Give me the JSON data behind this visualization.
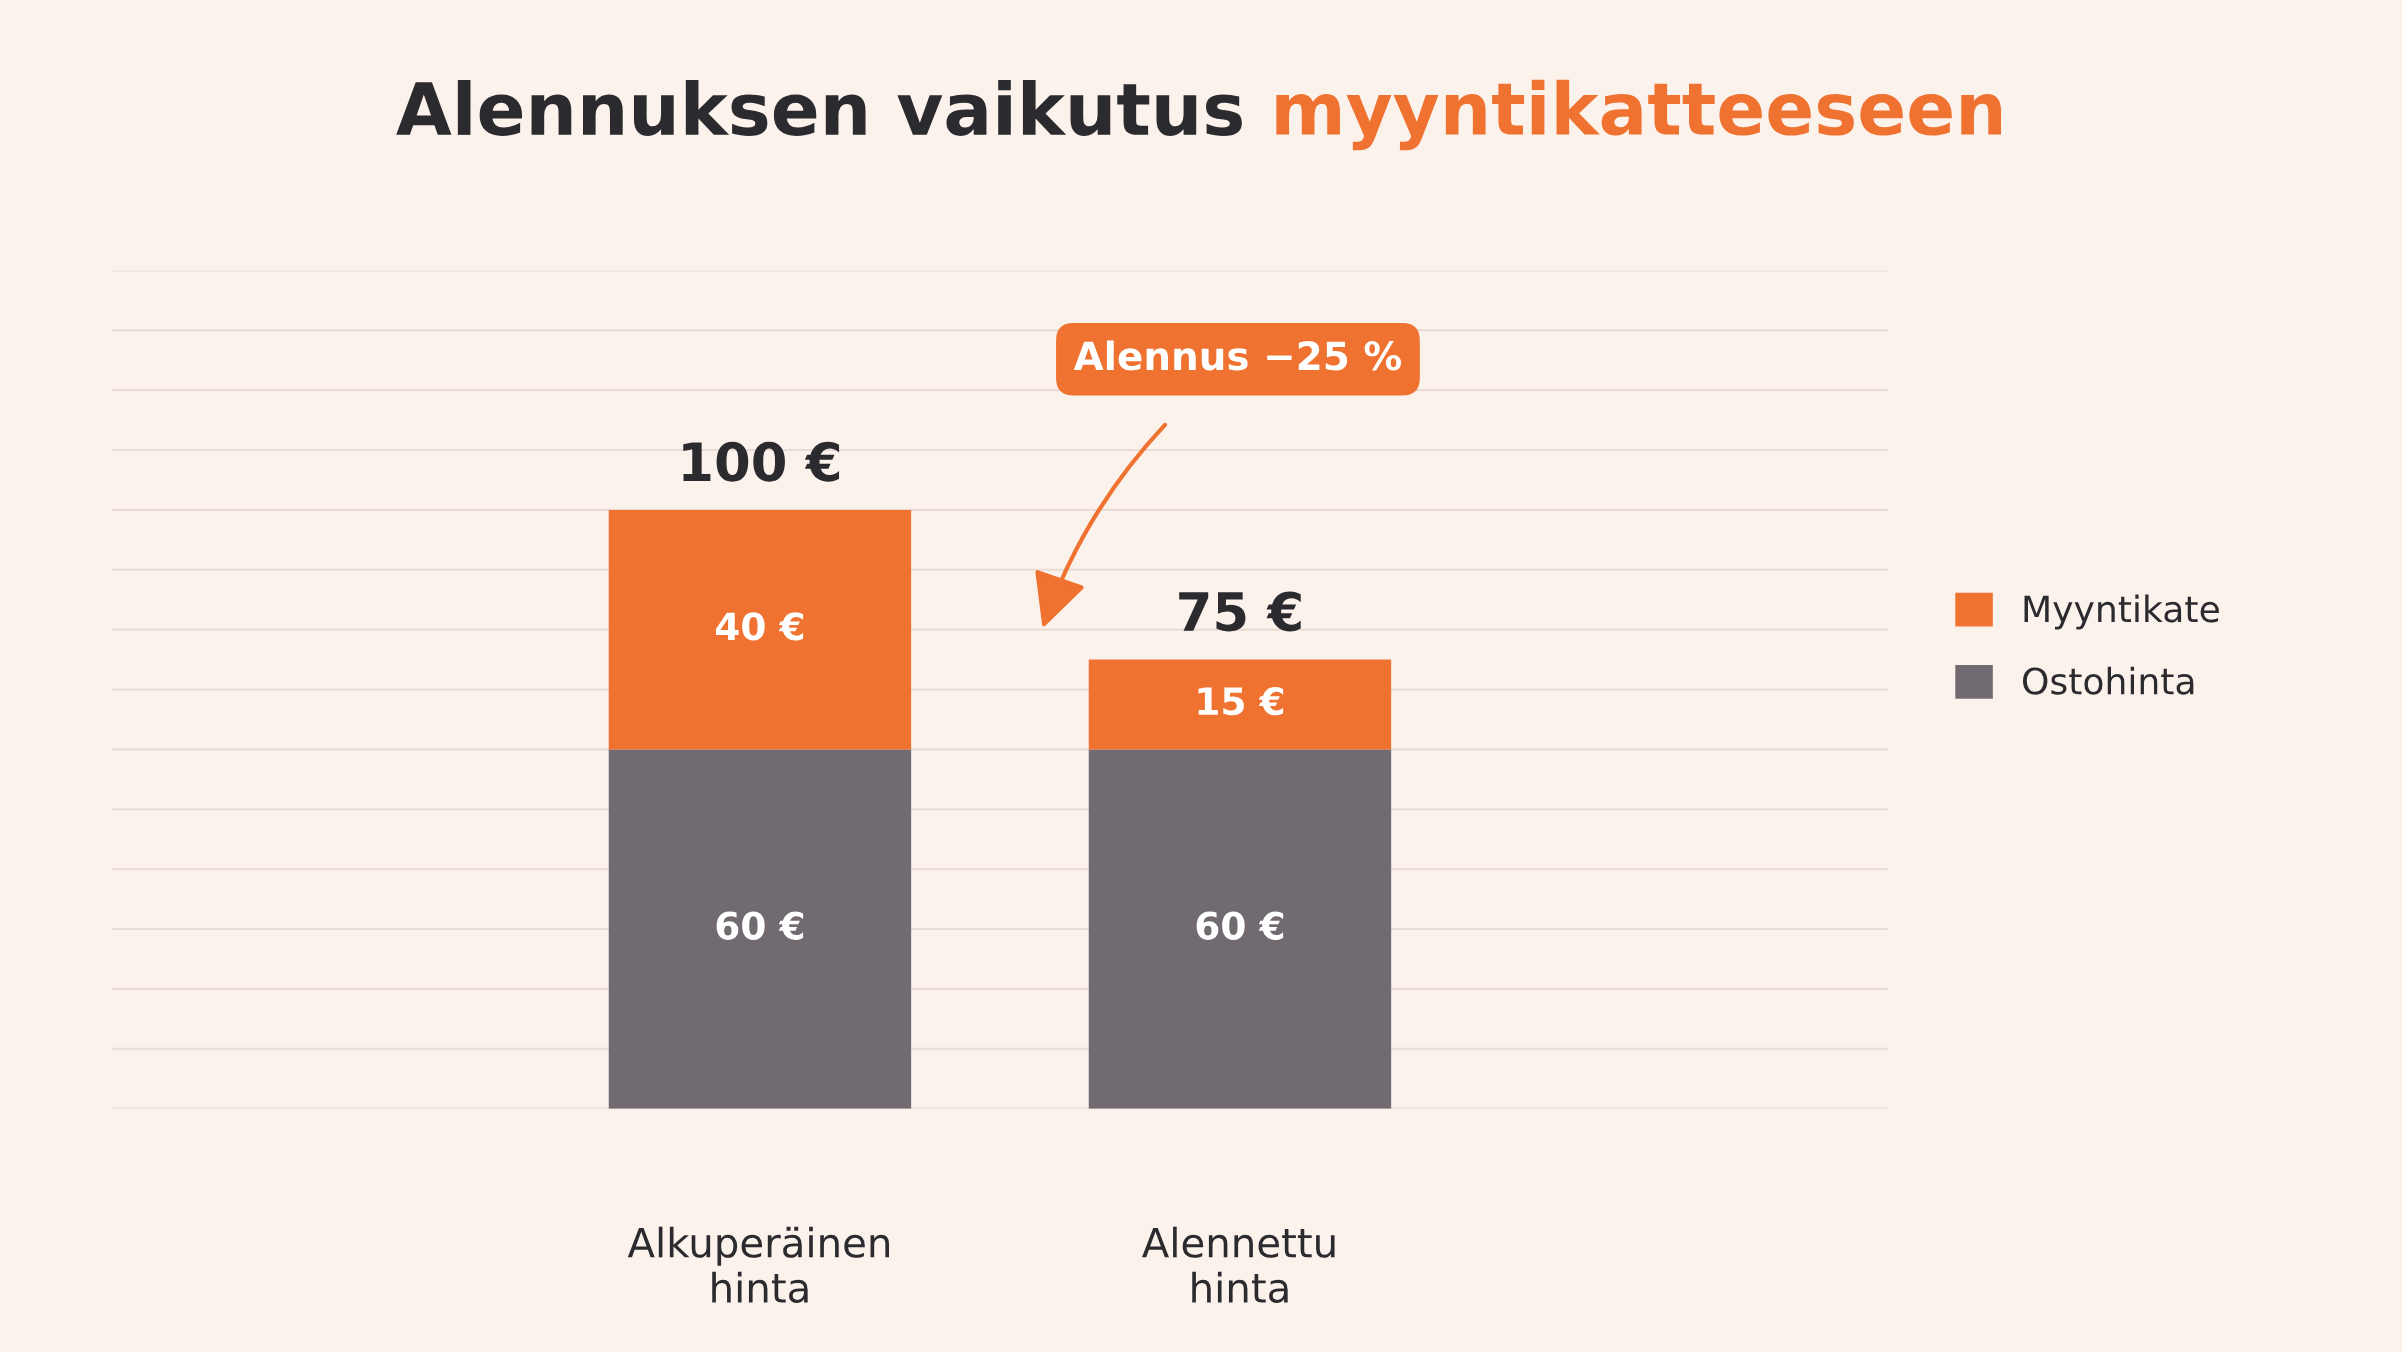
{
  "chart_data": {
    "type": "bar",
    "title": "Alennuksen vaikutus myyntikatteeseen",
    "categories": [
      "Alkuperäinen\nhinta",
      "Alennettu\nhinta"
    ],
    "stacked": true,
    "series": [
      {
        "name": "Ostohinta",
        "color": "#716b71",
        "values": [
          60,
          60
        ],
        "value_labels": [
          "60 €",
          "60 €"
        ]
      },
      {
        "name": "Myyntikate",
        "color": "#ef7230",
        "values": [
          40,
          15
        ],
        "value_labels": [
          "40 €",
          "15 €"
        ]
      }
    ],
    "totals": [
      "100 €",
      "75 €"
    ],
    "ylim": [
      0,
      140
    ],
    "yticks": [
      {
        "value": 0,
        "label": null
      },
      {
        "value": 10,
        "label": null
      },
      {
        "value": 20,
        "label": null
      },
      {
        "value": 30,
        "label": null
      },
      {
        "value": 40,
        "label": null
      },
      {
        "value": 50,
        "label": null
      },
      {
        "value": 60,
        "label": null
      },
      {
        "value": 70,
        "label": null
      },
      {
        "value": 80,
        "label": null
      },
      {
        "value": 90,
        "label": null
      },
      {
        "value": 100,
        "label": null
      },
      {
        "value": 110,
        "label": null
      },
      {
        "value": 120,
        "label": null
      },
      {
        "value": 130,
        "label": null
      },
      {
        "value": 140,
        "label": null
      }
    ],
    "tick_labels": "x",
    "grid": "y",
    "legend": "right",
    "annotations": [
      "Alennus −25 %"
    ]
  }
}
